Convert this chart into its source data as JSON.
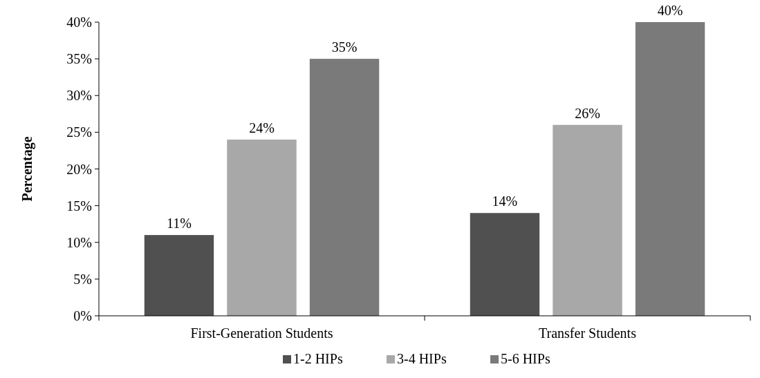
{
  "chart_data": {
    "type": "bar",
    "ylabel": "Percentage",
    "categories": [
      "First-Generation Students",
      "Transfer Students"
    ],
    "series": [
      {
        "name": "1-2 HIPs",
        "color": "#505050",
        "values": [
          11,
          14
        ],
        "value_labels": [
          "11%",
          "14%"
        ]
      },
      {
        "name": "3-4 HIPs",
        "color": "#a8a8a8",
        "values": [
          24,
          26
        ],
        "value_labels": [
          "24%",
          "26%"
        ]
      },
      {
        "name": "5-6 HIPs",
        "color": "#7a7a7a",
        "values": [
          35,
          40
        ],
        "value_labels": [
          "35%",
          "40%"
        ]
      }
    ],
    "ylim": [
      0,
      40
    ],
    "yticks": [
      {
        "value": 0,
        "label": "0%"
      },
      {
        "value": 5,
        "label": "5%"
      },
      {
        "value": 10,
        "label": "10%"
      },
      {
        "value": 15,
        "label": "15%"
      },
      {
        "value": 20,
        "label": "20%"
      },
      {
        "value": 25,
        "label": "25%"
      },
      {
        "value": 30,
        "label": "30%"
      },
      {
        "value": 35,
        "label": "35%"
      },
      {
        "value": 40,
        "label": "40%"
      }
    ],
    "grid": false,
    "legend": "bottom"
  }
}
